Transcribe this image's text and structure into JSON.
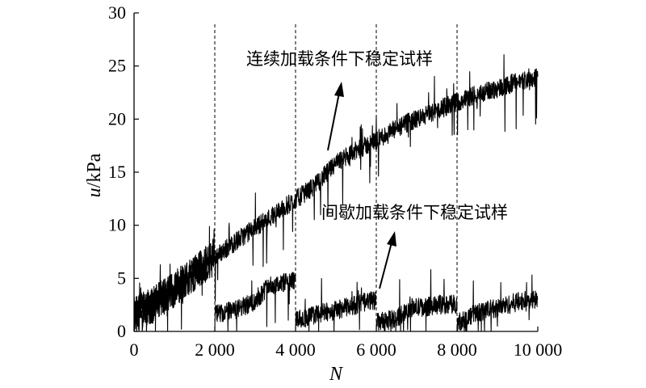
{
  "chart_data": {
    "type": "line",
    "xlabel": "N",
    "ylabel_var": "u",
    "ylabel_unit": "/kPa",
    "xlim": [
      0,
      10000
    ],
    "ylim": [
      0,
      30
    ],
    "xticks": [
      0,
      2000,
      4000,
      6000,
      8000,
      10000
    ],
    "xtick_labels": [
      "0",
      "2 000",
      "4 000",
      "6 000",
      "8 000",
      "10 000"
    ],
    "yticks": [
      0,
      5,
      10,
      15,
      20,
      25,
      30
    ],
    "ytick_labels": [
      "0",
      "5",
      "10",
      "15",
      "20",
      "25",
      "30"
    ],
    "vlines": [
      2000,
      4000,
      6000,
      8000
    ],
    "grid": false,
    "series": [
      {
        "name": "连续加载条件下稳定试样",
        "color": "#000000",
        "x": [
          0,
          500,
          1000,
          1500,
          2000,
          2500,
          3000,
          3500,
          4000,
          4500,
          5000,
          5500,
          6000,
          6500,
          7000,
          7500,
          8000,
          8500,
          9000,
          9500,
          10000
        ],
        "y": [
          1.5,
          2.6,
          4.0,
          5.5,
          7.0,
          8.4,
          9.8,
          11.1,
          12.4,
          13.8,
          15.8,
          17.0,
          18.0,
          19.1,
          20.0,
          20.8,
          21.6,
          22.3,
          22.9,
          23.5,
          24.0
        ]
      },
      {
        "name": "间歇加载条件下稳定试样",
        "color": "#000000",
        "x": [
          0,
          500,
          1000,
          1500,
          2000,
          2000,
          2500,
          3000,
          3300,
          3600,
          4000,
          4000,
          4500,
          5000,
          5500,
          6000,
          6000,
          6500,
          6800,
          7200,
          7600,
          8000,
          8000,
          8500,
          9000,
          9500,
          10000
        ],
        "y": [
          1.5,
          2.6,
          4.0,
          5.5,
          7.0,
          1.6,
          2.0,
          2.8,
          4.2,
          4.5,
          4.8,
          1.0,
          1.6,
          2.0,
          2.5,
          3.0,
          0.8,
          1.2,
          2.2,
          2.3,
          2.5,
          2.6,
          0.8,
          1.8,
          2.2,
          2.8,
          3.0
        ]
      }
    ],
    "annotations": [
      {
        "text": "连续加载条件下稳定试样",
        "arrow_to": [
          4800,
          16.5
        ]
      },
      {
        "text": "间歇加载条件下稳定试样",
        "arrow_to": [
          6050,
          3.8
        ]
      }
    ]
  }
}
